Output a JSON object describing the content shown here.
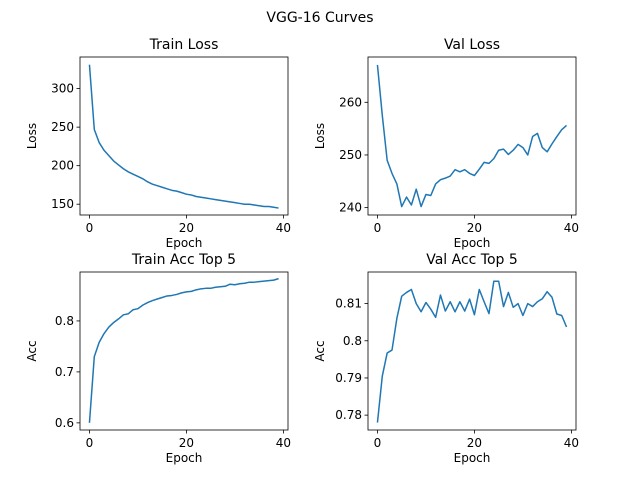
{
  "figure": {
    "suptitle": "VGG-16 Curves",
    "line_color": "#1f77b4"
  },
  "chart_data": [
    {
      "type": "line",
      "title": "Train Loss",
      "xlabel": "Epoch",
      "ylabel": "Loss",
      "xlim": [
        -1.95,
        40.95
      ],
      "ylim": [
        136,
        341
      ],
      "xticks": [
        0,
        20,
        40
      ],
      "yticks": [
        150,
        200,
        250,
        300
      ],
      "x": [
        0,
        1,
        2,
        3,
        4,
        5,
        6,
        7,
        8,
        9,
        10,
        11,
        12,
        13,
        14,
        15,
        16,
        17,
        18,
        19,
        20,
        21,
        22,
        23,
        24,
        25,
        26,
        27,
        28,
        29,
        30,
        31,
        32,
        33,
        34,
        35,
        36,
        37,
        38,
        39
      ],
      "series": [
        {
          "values": [
            331,
            247,
            230,
            220,
            213,
            206,
            201,
            196,
            192,
            189,
            186,
            183,
            179,
            176,
            174,
            172,
            170,
            168,
            167,
            165,
            163,
            162,
            160,
            159,
            158,
            157,
            156,
            155,
            154,
            153,
            152,
            151,
            150,
            150,
            149,
            148,
            147,
            147,
            146,
            145
          ]
        }
      ]
    },
    {
      "type": "line",
      "title": "Val Loss",
      "xlabel": "Epoch",
      "ylabel": "Loss",
      "xlim": [
        -1.95,
        40.95
      ],
      "ylim": [
        238.6,
        268.6
      ],
      "xticks": [
        0,
        20,
        40
      ],
      "yticks": [
        240,
        250,
        260
      ],
      "x": [
        0,
        1,
        2,
        3,
        4,
        5,
        6,
        7,
        8,
        9,
        10,
        11,
        12,
        13,
        14,
        15,
        16,
        17,
        18,
        19,
        20,
        21,
        22,
        23,
        24,
        25,
        26,
        27,
        28,
        29,
        30,
        31,
        32,
        33,
        34,
        35,
        36,
        37,
        38,
        39
      ],
      "series": [
        {
          "values": [
            267.1,
            257.5,
            249.0,
            246.5,
            244.5,
            240.2,
            242.0,
            240.5,
            243.5,
            240.2,
            242.5,
            242.3,
            244.5,
            245.3,
            245.6,
            246.0,
            247.2,
            246.8,
            247.2,
            246.5,
            246.1,
            247.3,
            248.6,
            248.4,
            249.3,
            250.9,
            251.1,
            250.1,
            250.9,
            252.0,
            251.4,
            250.0,
            253.5,
            254.1,
            251.4,
            250.6,
            252.1,
            253.5,
            254.8,
            255.6
          ]
        }
      ]
    },
    {
      "type": "line",
      "title": "Train Acc Top 5",
      "xlabel": "Epoch",
      "ylabel": "Acc",
      "xlim": [
        -1.95,
        40.95
      ],
      "ylim": [
        0.586,
        0.896
      ],
      "xticks": [
        0,
        20,
        40
      ],
      "yticks": [
        0.6,
        0.7,
        0.8
      ],
      "x": [
        0,
        1,
        2,
        3,
        4,
        5,
        6,
        7,
        8,
        9,
        10,
        11,
        12,
        13,
        14,
        15,
        16,
        17,
        18,
        19,
        20,
        21,
        22,
        23,
        24,
        25,
        26,
        27,
        28,
        29,
        30,
        31,
        32,
        33,
        34,
        35,
        36,
        37,
        38,
        39
      ],
      "series": [
        {
          "values": [
            0.6,
            0.73,
            0.758,
            0.775,
            0.788,
            0.797,
            0.804,
            0.812,
            0.814,
            0.822,
            0.824,
            0.831,
            0.836,
            0.84,
            0.843,
            0.846,
            0.849,
            0.85,
            0.852,
            0.855,
            0.857,
            0.858,
            0.861,
            0.863,
            0.864,
            0.864,
            0.866,
            0.867,
            0.868,
            0.872,
            0.871,
            0.873,
            0.874,
            0.876,
            0.876,
            0.877,
            0.878,
            0.879,
            0.88,
            0.883
          ]
        }
      ]
    },
    {
      "type": "line",
      "title": "Val Acc Top 5",
      "xlabel": "Epoch",
      "ylabel": "Acc",
      "xlim": [
        -1.95,
        40.95
      ],
      "ylim": [
        0.776,
        0.8185
      ],
      "xticks": [
        0,
        20,
        40
      ],
      "yticks": [
        0.78,
        0.79,
        0.8,
        0.81
      ],
      "x": [
        0,
        1,
        2,
        3,
        4,
        5,
        6,
        7,
        8,
        9,
        10,
        11,
        12,
        13,
        14,
        15,
        16,
        17,
        18,
        19,
        20,
        21,
        22,
        23,
        24,
        25,
        26,
        27,
        28,
        29,
        30,
        31,
        32,
        33,
        34,
        35,
        36,
        37,
        38,
        39
      ],
      "series": [
        {
          "values": [
            0.778,
            0.7905,
            0.7967,
            0.7975,
            0.806,
            0.812,
            0.813,
            0.8138,
            0.81,
            0.8078,
            0.8103,
            0.8085,
            0.8063,
            0.8123,
            0.808,
            0.8105,
            0.8078,
            0.8105,
            0.808,
            0.8112,
            0.807,
            0.8138,
            0.8105,
            0.8073,
            0.816,
            0.816,
            0.8092,
            0.813,
            0.809,
            0.81,
            0.8068,
            0.81,
            0.8092,
            0.8105,
            0.8113,
            0.8132,
            0.8117,
            0.8072,
            0.8068,
            0.8037
          ]
        }
      ]
    }
  ]
}
